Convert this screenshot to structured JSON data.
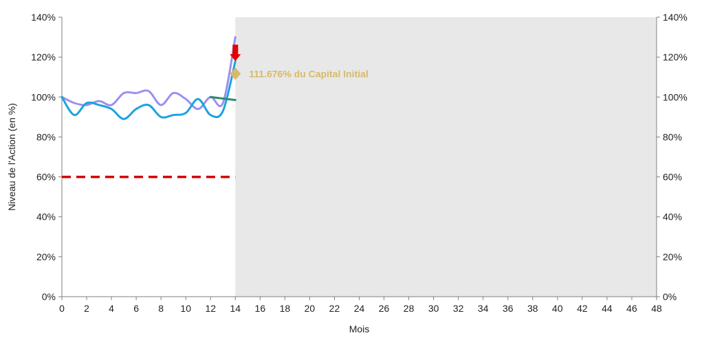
{
  "chart_data": {
    "type": "line",
    "title": "",
    "xlabel": "Mois",
    "ylabel": "Niveau de l'Action (en %)",
    "xlim": [
      0,
      48
    ],
    "ylim": [
      0,
      140
    ],
    "x_ticks": [
      "0",
      "2",
      "4",
      "6",
      "8",
      "10",
      "12",
      "14",
      "16",
      "18",
      "20",
      "22",
      "24",
      "26",
      "28",
      "30",
      "32",
      "34",
      "36",
      "38",
      "40",
      "42",
      "44",
      "46",
      "48"
    ],
    "y_ticks_left": [
      "0%",
      "20%",
      "40%",
      "60%",
      "80%",
      "100%",
      "120%",
      "140%"
    ],
    "y_ticks_right": [
      "0%",
      "20%",
      "40%",
      "60%",
      "80%",
      "100%",
      "120%",
      "140%"
    ],
    "y_tick_values": [
      0,
      20,
      40,
      60,
      80,
      100,
      120,
      140
    ],
    "shaded_region": {
      "x_from": 14,
      "x_to": 48,
      "color": "#e8e8e8"
    },
    "series": [
      {
        "color": "#9b8ff0",
        "x": [
          0,
          1,
          2,
          3,
          4,
          5,
          6,
          7,
          8,
          9,
          10,
          11,
          12,
          13,
          14
        ],
        "y": [
          100,
          97,
          96,
          98,
          96,
          102,
          102,
          103,
          96,
          102,
          99,
          94,
          100,
          97,
          130
        ]
      },
      {
        "color": "#1aa3e0",
        "x": [
          0,
          1,
          2,
          3,
          4,
          5,
          6,
          7,
          8,
          9,
          10,
          11,
          12,
          13,
          14
        ],
        "y": [
          100,
          91,
          97,
          96,
          94,
          89,
          94,
          96,
          90,
          91,
          92,
          99,
          91,
          93,
          118
        ]
      },
      {
        "color": "#2e8b6e",
        "x": [
          12,
          14
        ],
        "y": [
          100,
          98.5
        ]
      }
    ],
    "barrier": {
      "y": 60,
      "x_from": 0,
      "x_to": 14,
      "color": "#d40000"
    },
    "marker": {
      "x": 14,
      "y": 111.676,
      "color": "#d8b96a",
      "label": "111.676% du Capital Initial"
    },
    "arrow": {
      "x": 14,
      "y": 118,
      "color": "#e50000"
    }
  }
}
